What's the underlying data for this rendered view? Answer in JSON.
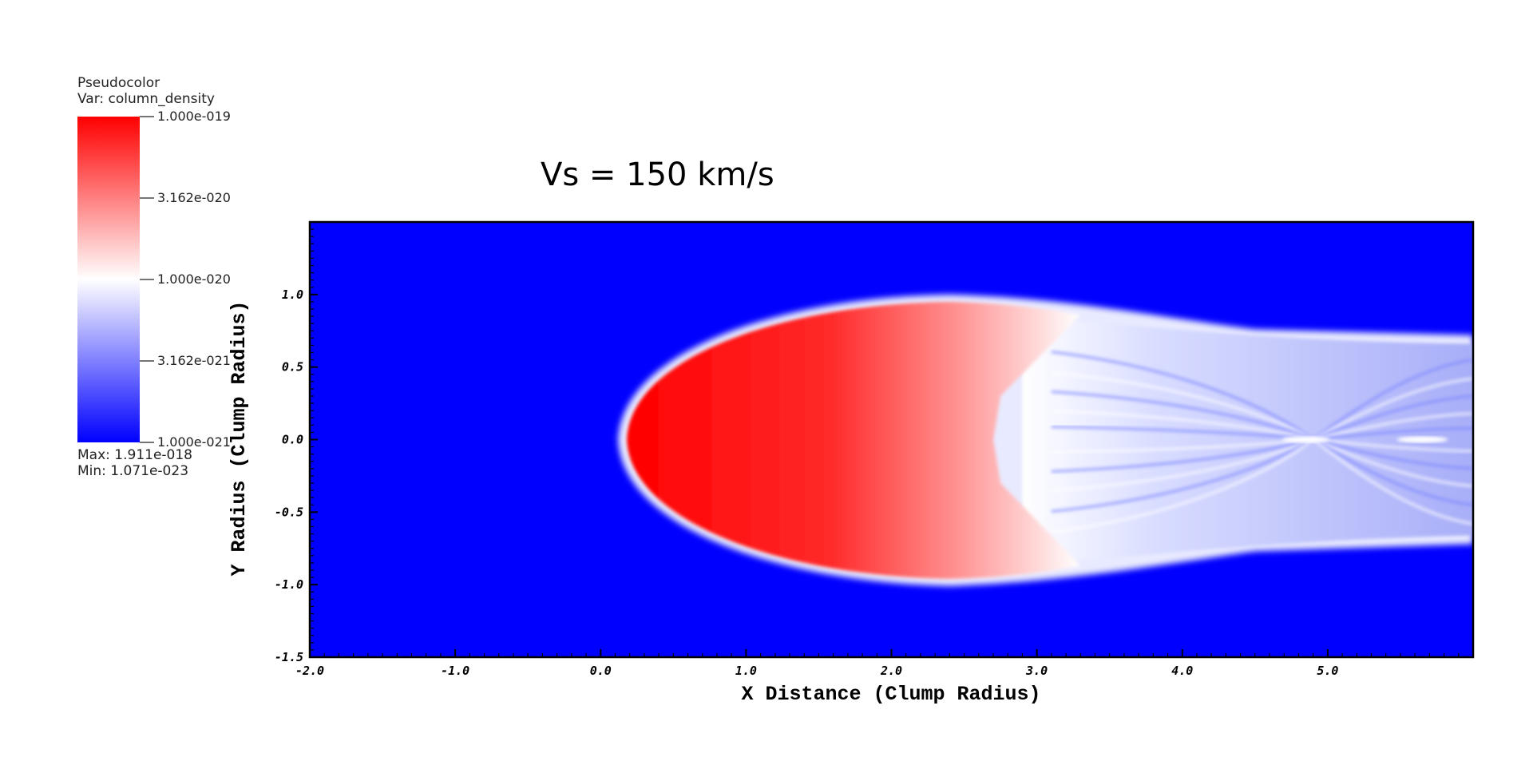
{
  "chart_data": {
    "type": "heatmap",
    "title": "Vs = 150 km/s",
    "xlabel": "X Distance (Clump Radius)",
    "ylabel": "Y Radius (Clump Radius)",
    "xlim": [
      -2.0,
      6.0
    ],
    "ylim": [
      -1.5,
      1.5
    ],
    "x_ticks": [
      "-2.0",
      "-1.0",
      "0.0",
      "1.0",
      "2.0",
      "3.0",
      "4.0",
      "5.0"
    ],
    "x_tick_values": [
      -2,
      -1,
      0,
      1,
      2,
      3,
      4,
      5
    ],
    "y_ticks": [
      "-1.5",
      "-1.0",
      "-0.5",
      "0.0",
      "0.5",
      "1.0"
    ],
    "y_tick_values": [
      -1.5,
      -1.0,
      -0.5,
      0.0,
      0.5,
      1.0
    ],
    "colorbar": {
      "title": "Pseudocolor",
      "variable": "Var: column_density",
      "scale": "log",
      "labels": [
        "1.000e-019",
        "3.162e-020",
        "1.000e-020",
        "3.162e-021",
        "1.000e-021"
      ],
      "label_values": [
        -19,
        -19.5,
        -20,
        -20.5,
        -21
      ],
      "max_text": "Max:  1.911e-018",
      "min_text": "Min:  1.071e-023",
      "colors": [
        "#ff0000",
        "#ffffff",
        "#0000ff"
      ]
    },
    "background_color": "#0000ff",
    "grid": false
  }
}
